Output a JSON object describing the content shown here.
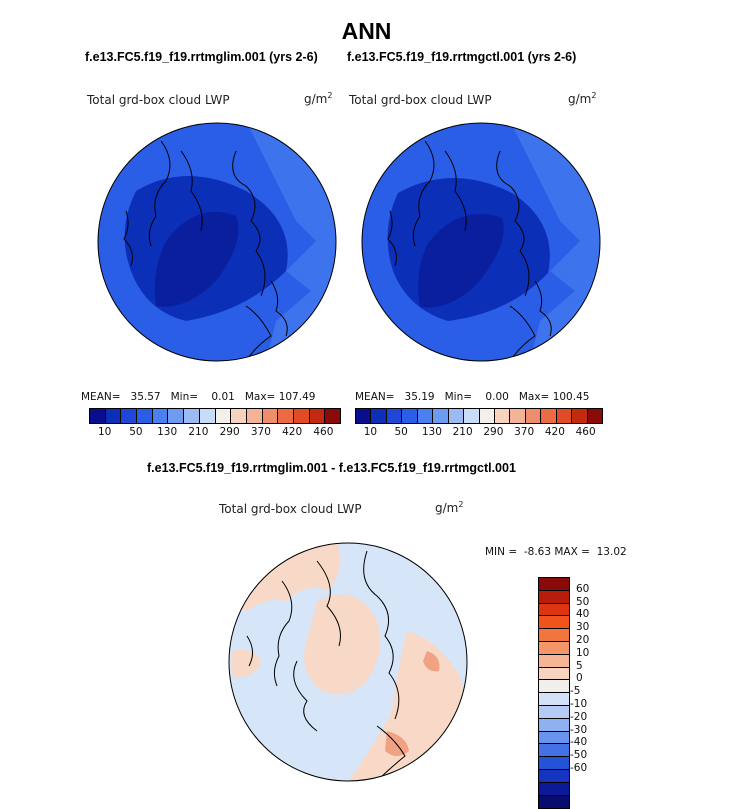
{
  "page_title": "ANN",
  "panels": [
    {
      "case": "f.e13.FC5.f19_f19.rrtmglim.001 (yrs 2-6)",
      "variable": "Total grd-box cloud LWP",
      "units": "g/m",
      "units_exp": "2",
      "mean_label": "MEAN=",
      "mean": "35.57",
      "min_label": "Min=",
      "min": "0.01",
      "max_label": "Max=",
      "max": "107.49"
    },
    {
      "case": "f.e13.FC5.f19_f19.rrtmgctl.001 (yrs 2-6)",
      "variable": "Total grd-box cloud LWP",
      "units": "g/m",
      "units_exp": "2",
      "mean_label": "MEAN=",
      "mean": "35.19",
      "min_label": "Min=",
      "min": "0.00",
      "max_label": "Max=",
      "max": "100.45"
    }
  ],
  "abs_colorbar": {
    "colors": [
      "#0a0e8c",
      "#0c2fb8",
      "#1f46d6",
      "#2a5ee6",
      "#4a7ff0",
      "#6e9bf2",
      "#9cbaf2",
      "#c8dbf7",
      "#f3efe9",
      "#f7d3bf",
      "#f4b396",
      "#f08e6b",
      "#ec6a44",
      "#e14b25",
      "#c42a10",
      "#8a0a0a"
    ],
    "ticks": [
      "10",
      "50",
      "130",
      "210",
      "290",
      "370",
      "420",
      "460"
    ]
  },
  "diff_panel": {
    "case": "f.e13.FC5.f19_f19.rrtmglim.001 - f.e13.FC5.f19_f19.rrtmgctl.001",
    "variable": "Total grd-box cloud LWP",
    "units": "g/m",
    "units_exp": "2",
    "min_label": "MIN =",
    "min": "-8.63",
    "max_label": "MAX =",
    "max": "13.02"
  },
  "diff_colorbar": {
    "colors": [
      "#8a0a0a",
      "#b81c0b",
      "#de3410",
      "#f0531c",
      "#f2743f",
      "#f4956a",
      "#f6b595",
      "#f8d4c0",
      "#f1efec",
      "#d3e2f7",
      "#b4ccf5",
      "#8fb1f2",
      "#6a93ee",
      "#4472e6",
      "#2553d8",
      "#1534bf",
      "#0d1a98",
      "#070c6e"
    ],
    "ticks": [
      "60",
      "50",
      "40",
      "30",
      "20",
      "10",
      "5",
      "0",
      "-5",
      "-10",
      "-20",
      "-30",
      "-40",
      "-50",
      "-60"
    ]
  },
  "map_colors": {
    "abs_background": "#2a5ee6",
    "abs_dark": "#0c2fb8",
    "abs_darkest": "#0a1f9e",
    "abs_light": "#3e73ee",
    "diff_background": "#d6e5f8",
    "diff_positive": "#f8d9c7",
    "diff_positive_strong": "#f0a283",
    "coastline": "#000000"
  }
}
